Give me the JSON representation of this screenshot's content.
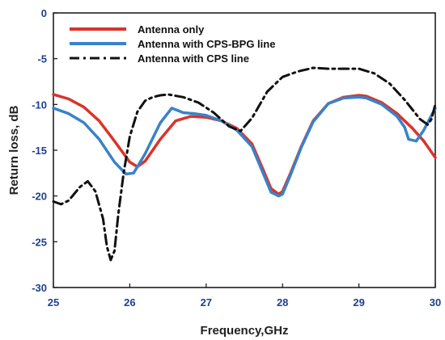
{
  "chart_data": {
    "type": "line",
    "title": "",
    "xlabel": "Frequency,GHz",
    "ylabel": "Return loss, dB",
    "xlim": [
      25,
      30
    ],
    "ylim": [
      -30,
      0
    ],
    "xticks": [
      25,
      26,
      27,
      28,
      29,
      30
    ],
    "yticks": [
      0,
      -5,
      -10,
      -15,
      -20,
      -25,
      -30
    ],
    "grid": false,
    "legend_position": "top-left",
    "series": [
      {
        "name": "Antenna only",
        "color": "#d9342b",
        "style": "solid",
        "x": [
          25.0,
          25.2,
          25.4,
          25.6,
          25.8,
          26.0,
          26.1,
          26.2,
          26.4,
          26.6,
          26.8,
          27.0,
          27.2,
          27.4,
          27.6,
          27.75,
          27.85,
          27.95,
          28.0,
          28.1,
          28.25,
          28.4,
          28.6,
          28.8,
          29.0,
          29.1,
          29.3,
          29.5,
          29.7,
          29.85,
          30.0
        ],
        "y": [
          -8.9,
          -9.4,
          -10.3,
          -11.8,
          -14.0,
          -16.3,
          -16.8,
          -16.2,
          -13.8,
          -11.8,
          -11.3,
          -11.4,
          -11.8,
          -12.6,
          -14.3,
          -17.2,
          -19.2,
          -19.8,
          -19.5,
          -17.6,
          -14.5,
          -11.8,
          -9.9,
          -9.2,
          -9.0,
          -9.1,
          -9.8,
          -11.0,
          -12.6,
          -14.0,
          -15.8
        ]
      },
      {
        "name": "Antenna with CPS-BPG line",
        "color": "#3a82c8",
        "style": "solid",
        "x": [
          25.0,
          25.2,
          25.4,
          25.6,
          25.8,
          25.95,
          26.05,
          26.2,
          26.4,
          26.55,
          26.7,
          26.85,
          27.0,
          27.2,
          27.4,
          27.6,
          27.75,
          27.85,
          27.95,
          28.0,
          28.1,
          28.25,
          28.4,
          28.6,
          28.8,
          29.0,
          29.1,
          29.3,
          29.5,
          29.6,
          29.65,
          29.75,
          29.85,
          30.0
        ],
        "y": [
          -10.4,
          -11.0,
          -12.0,
          -13.8,
          -16.3,
          -17.6,
          -17.5,
          -15.4,
          -12.0,
          -10.4,
          -10.9,
          -11.0,
          -11.2,
          -11.8,
          -12.8,
          -14.6,
          -17.6,
          -19.6,
          -20.0,
          -19.8,
          -17.8,
          -14.6,
          -11.9,
          -9.9,
          -9.3,
          -9.2,
          -9.3,
          -10.0,
          -11.3,
          -12.5,
          -13.8,
          -14.0,
          -12.8,
          -10.4
        ]
      },
      {
        "name": "Antenna with CPS line",
        "color": "#111111",
        "style": "dashdot",
        "x": [
          25.0,
          25.1,
          25.2,
          25.35,
          25.45,
          25.55,
          25.65,
          25.7,
          25.75,
          25.8,
          25.85,
          25.92,
          26.0,
          26.1,
          26.2,
          26.3,
          26.4,
          26.5,
          26.7,
          26.9,
          27.1,
          27.3,
          27.45,
          27.6,
          27.8,
          28.0,
          28.2,
          28.4,
          28.6,
          28.8,
          29.0,
          29.2,
          29.4,
          29.6,
          29.8,
          29.9,
          29.95,
          30.0
        ],
        "y": [
          -20.6,
          -20.9,
          -20.5,
          -19.0,
          -18.4,
          -19.5,
          -22.5,
          -25.5,
          -27.0,
          -26.0,
          -22.0,
          -17.5,
          -13.5,
          -10.8,
          -9.6,
          -9.2,
          -9.0,
          -8.9,
          -9.2,
          -9.8,
          -10.9,
          -12.4,
          -12.9,
          -11.5,
          -8.6,
          -7.0,
          -6.4,
          -6.0,
          -6.1,
          -6.1,
          -6.1,
          -6.6,
          -7.7,
          -9.5,
          -11.6,
          -12.2,
          -11.6,
          -10.0
        ]
      }
    ]
  }
}
